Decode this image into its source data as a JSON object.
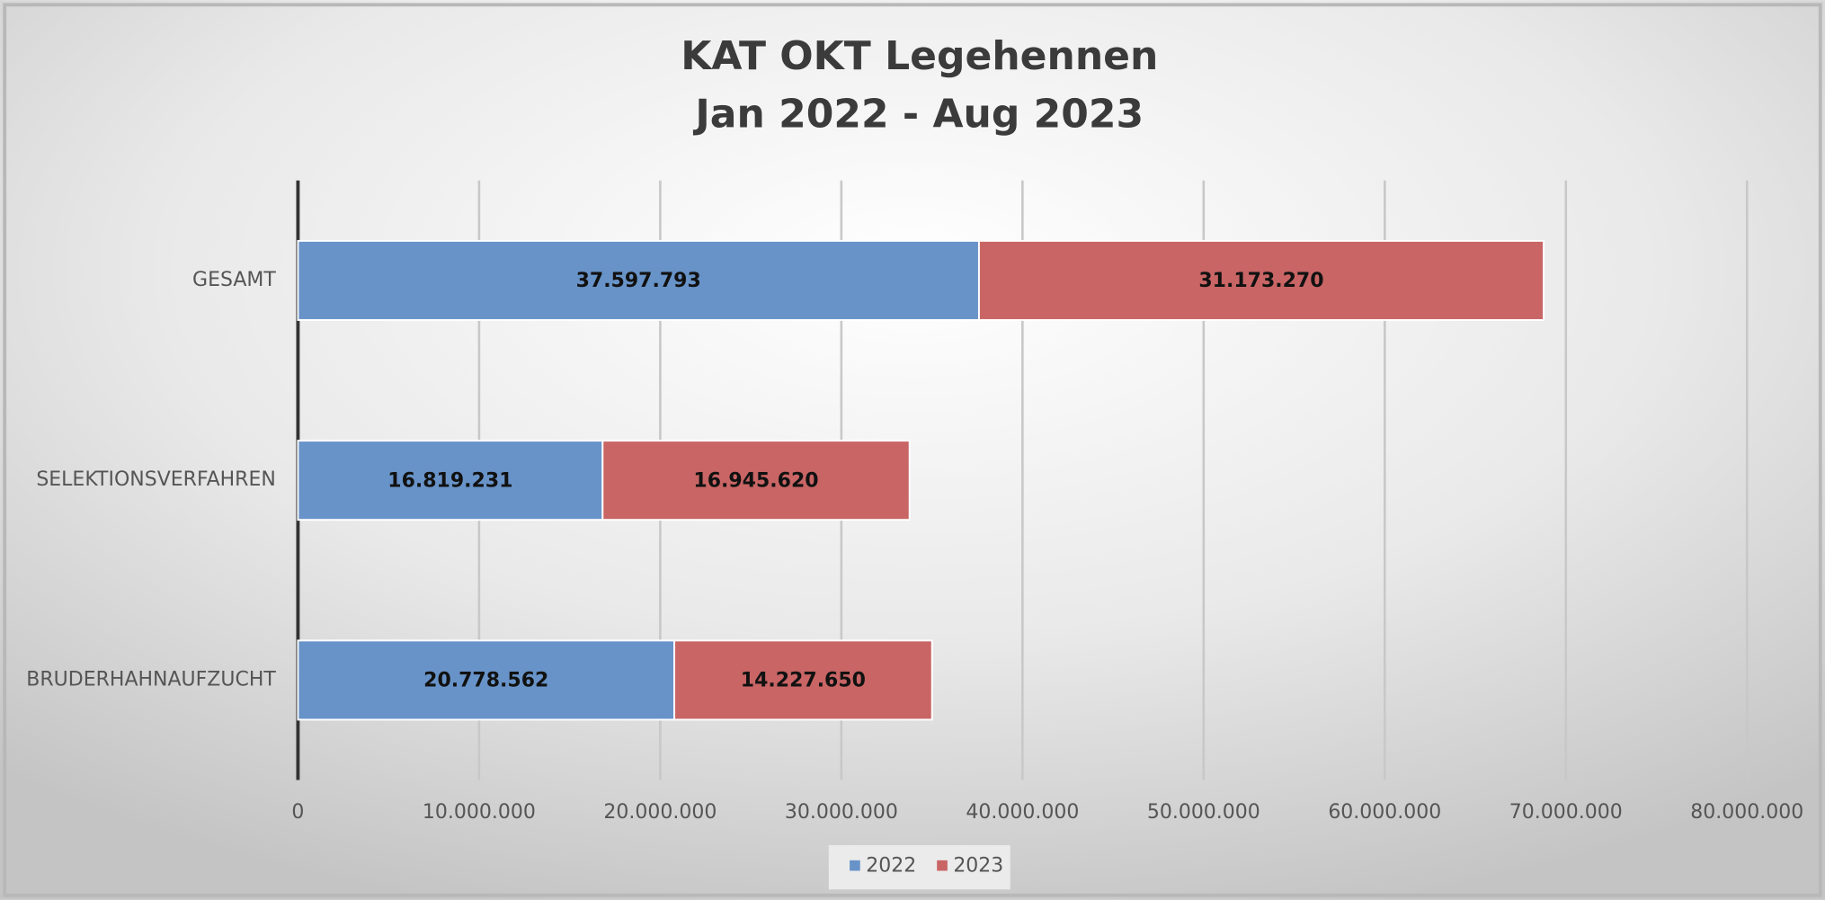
{
  "chart_data": {
    "type": "stacked_bar_horizontal",
    "title": "KAT OKT Legehennen",
    "subtitle": "Jan 2022 - Aug 2023",
    "categories": [
      "GESAMT",
      "SELEKTIONSVERFAHREN",
      "BRUDERHAHNAUFZUCHT"
    ],
    "series": [
      {
        "name": "2022",
        "color": "#6893c8",
        "values": [
          37597793,
          16819231,
          20778562
        ],
        "value_labels": [
          "37.597.793",
          "16.819.231",
          "20.778.562"
        ]
      },
      {
        "name": "2023",
        "color": "#c96565",
        "values": [
          31173270,
          16945620,
          14227650
        ],
        "value_labels": [
          "31.173.270",
          "16.945.620",
          "14.227.650"
        ]
      }
    ],
    "xlim": [
      0,
      80000000
    ],
    "xticks": [
      0,
      {
        "value": 10000000,
        "label": "10.000.000"
      },
      {
        "value": 20000000,
        "label": "20.000.000"
      },
      {
        "value": 30000000,
        "label": "30.000.000"
      },
      {
        "value": 40000000,
        "label": "40.000.000"
      },
      {
        "value": 50000000,
        "label": "50.000.000"
      },
      {
        "value": 60000000,
        "label": "60.000.000"
      },
      {
        "value": 70000000,
        "label": "70.000.000"
      },
      {
        "value": 80000000,
        "label": "80.000.000"
      }
    ],
    "grid": true,
    "legend": "bottom"
  }
}
